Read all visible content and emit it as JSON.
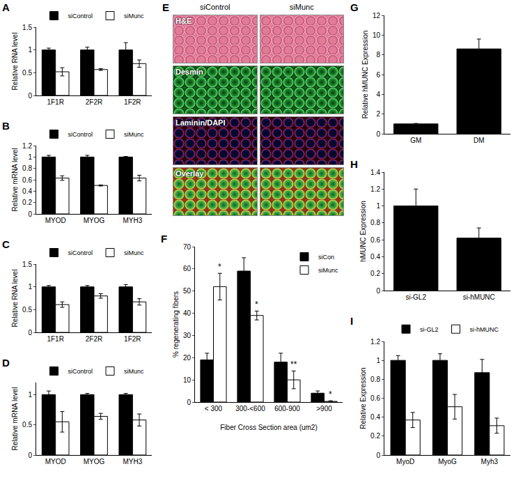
{
  "chart_data": [
    {
      "type": "bar",
      "title": "A",
      "categories": [
        "1F1R",
        "2F2R",
        "1F2R"
      ],
      "series": [
        {
          "name": "siControl",
          "color": "#000000",
          "values": [
            1,
            1,
            1
          ],
          "errors": [
            0.04,
            0.06,
            0.16
          ]
        },
        {
          "name": "siMunc",
          "color": "#ffffff",
          "values": [
            0.52,
            0.57,
            0.7
          ],
          "errors": [
            0.09,
            0.02,
            0.08
          ]
        }
      ],
      "y_label": "Relative RNA level",
      "ylim": [
        0,
        1.5
      ],
      "yticks": [
        0,
        0.5,
        1,
        1.5
      ],
      "legend": "top"
    },
    {
      "type": "bar",
      "title": "B",
      "categories": [
        "MYOD",
        "MYOG",
        "MYH3"
      ],
      "series": [
        {
          "name": "siControl",
          "color": "#000000",
          "values": [
            1,
            1,
            1
          ],
          "errors": [
            0.03,
            0.03,
            0.01
          ]
        },
        {
          "name": "siMunc",
          "color": "#ffffff",
          "values": [
            0.63,
            0.5,
            0.63
          ],
          "errors": [
            0.04,
            0.01,
            0.05
          ]
        }
      ],
      "y_label": "Relative mRNA level",
      "ylim": [
        0,
        1.2
      ],
      "yticks": [
        0,
        0.2,
        0.4,
        0.6,
        0.8,
        1,
        1.2
      ],
      "legend": "top"
    },
    {
      "type": "bar",
      "title": "C",
      "categories": [
        "1F1R",
        "2F2R",
        "1F2R"
      ],
      "series": [
        {
          "name": "siControl",
          "color": "#000000",
          "values": [
            1,
            1,
            1
          ],
          "errors": [
            0.03,
            0.03,
            0.05
          ]
        },
        {
          "name": "siMunc",
          "color": "#ffffff",
          "values": [
            0.61,
            0.8,
            0.67
          ],
          "errors": [
            0.06,
            0.05,
            0.07
          ]
        }
      ],
      "y_label": "Relative RNA level",
      "ylim": [
        0,
        1.5
      ],
      "yticks": [
        0,
        0.5,
        1,
        1.5
      ],
      "legend": "top"
    },
    {
      "type": "bar",
      "title": "D",
      "categories": [
        "MYOD",
        "MYOG",
        "MYH3"
      ],
      "series": [
        {
          "name": "siControl",
          "color": "#000000",
          "values": [
            1,
            1,
            1
          ],
          "errors": [
            0.06,
            0.02,
            0.02
          ]
        },
        {
          "name": "siMunc",
          "color": "#ffffff",
          "values": [
            0.55,
            0.64,
            0.58
          ],
          "errors": [
            0.17,
            0.05,
            0.1
          ]
        }
      ],
      "y_label": "Relative mRNA level",
      "ylim": [
        0,
        1.2
      ],
      "yticks": [
        0,
        0.5,
        1
      ],
      "legend": "top"
    },
    {
      "type": "image",
      "title": "E",
      "columns": [
        "siControl",
        "siMunc"
      ],
      "rows": [
        "H&E",
        "Desmin",
        "Laminin/DAPI",
        "Overlay"
      ]
    },
    {
      "type": "bar",
      "title": "F",
      "categories": [
        "< 300",
        "300-<600",
        "600-900",
        ">900"
      ],
      "series": [
        {
          "name": "siCon",
          "color": "#000000",
          "values": [
            19,
            59,
            18,
            4
          ],
          "errors": [
            3,
            6,
            4,
            1
          ]
        },
        {
          "name": "siMunc",
          "color": "#ffffff",
          "values": [
            52,
            39,
            10,
            0.3
          ],
          "errors": [
            6,
            2,
            4,
            0.3
          ],
          "significance": [
            "*",
            "*",
            "**",
            "*"
          ]
        }
      ],
      "x_label": "Fiber Cross Section area (um2)",
      "y_label": "% regenerating fibers",
      "ylim": [
        0,
        70
      ],
      "yticks": [
        0,
        10,
        20,
        30,
        40,
        50,
        60,
        70
      ],
      "legend": "upper right"
    },
    {
      "type": "bar",
      "title": "G",
      "categories": [
        "GM",
        "DM"
      ],
      "values": [
        1,
        8.6
      ],
      "errors": [
        0.05,
        1.0
      ],
      "color": "#000000",
      "y_label": "Relative hMUNC Expression",
      "ylim": [
        0,
        12
      ],
      "yticks": [
        0,
        2,
        4,
        6,
        8,
        10,
        12
      ]
    },
    {
      "type": "bar",
      "title": "H",
      "categories": [
        "si-GL2",
        "si-hMUNC"
      ],
      "values": [
        1,
        0.62
      ],
      "errors": [
        0.2,
        0.12
      ],
      "color": "#000000",
      "y_label": "hMUNC Expression",
      "ylim": [
        0,
        1.4
      ],
      "yticks": [
        0,
        0.2,
        0.4,
        0.6,
        0.8,
        1,
        1.2,
        1.4
      ]
    },
    {
      "type": "bar",
      "title": "I",
      "categories": [
        "MyoD",
        "MyoG",
        "Myh3"
      ],
      "series": [
        {
          "name": "si-GL2",
          "color": "#000000",
          "values": [
            1,
            1,
            0.87
          ],
          "errors": [
            0.05,
            0.07,
            0.14
          ]
        },
        {
          "name": "si-hMUNC",
          "color": "#ffffff",
          "values": [
            0.37,
            0.51,
            0.31
          ],
          "errors": [
            0.08,
            0.13,
            0.08
          ]
        }
      ],
      "y_label": "Relative Expression",
      "ylim": [
        0,
        1.2
      ],
      "yticks": [
        0,
        0.2,
        0.4,
        0.6,
        0.8,
        1,
        1.2
      ],
      "legend": "top"
    }
  ]
}
